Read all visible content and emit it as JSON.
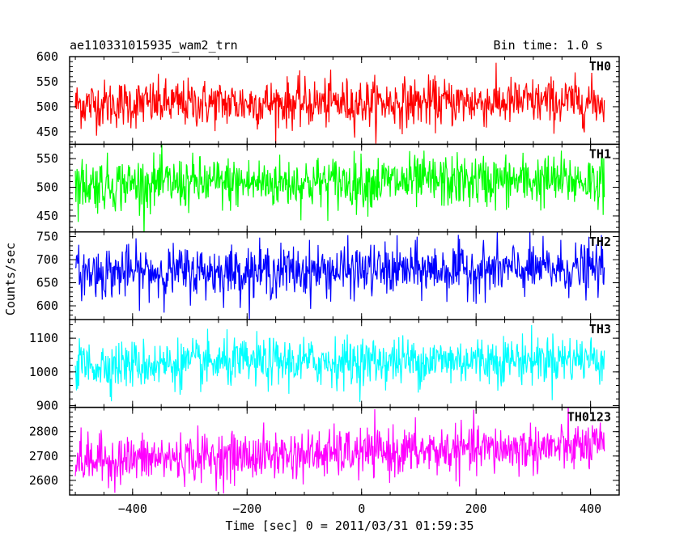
{
  "header": {
    "title": "ae110331015935_wam2_trn",
    "bin_time": "Bin time: 1.0 s"
  },
  "axes": {
    "ylabel": "Counts/sec",
    "xlabel": "Time [sec] 0 = 2011/03/31 01:59:35",
    "xlim": [
      -510,
      450
    ],
    "xticks": [
      -400,
      -200,
      0,
      200,
      400
    ],
    "xtick_labels": [
      "−400",
      "−200",
      "0",
      "200",
      "400"
    ]
  },
  "chart_data": {
    "type": "line",
    "x_range": [
      -500,
      424
    ],
    "bin_time": 1.0,
    "panels": [
      {
        "name": "TH0",
        "color": "#ff0000",
        "ylim": [
          425,
          600
        ],
        "yticks": [
          450,
          500,
          550,
          600
        ],
        "mean_start": 505,
        "mean_end": 510,
        "noise_sd": 24
      },
      {
        "name": "TH1",
        "color": "#00ff00",
        "ylim": [
          422,
          575
        ],
        "yticks": [
          450,
          500,
          550
        ],
        "mean_start": 505,
        "mean_end": 512,
        "noise_sd": 23
      },
      {
        "name": "TH2",
        "color": "#0000ff",
        "ylim": [
          570,
          760
        ],
        "yticks": [
          600,
          650,
          700,
          750
        ],
        "mean_start": 672,
        "mean_end": 680,
        "noise_sd": 28
      },
      {
        "name": "TH3",
        "color": "#00ffff",
        "ylim": [
          895,
          1155
        ],
        "yticks": [
          900,
          1000,
          1100
        ],
        "mean_start": 1020,
        "mean_end": 1040,
        "noise_sd": 36
      },
      {
        "name": "TH0123",
        "color": "#ff00ff",
        "ylim": [
          2540,
          2900
        ],
        "yticks": [
          2600,
          2700,
          2800
        ],
        "mean_start": 2680,
        "mean_end": 2740,
        "noise_sd": 50
      }
    ]
  }
}
